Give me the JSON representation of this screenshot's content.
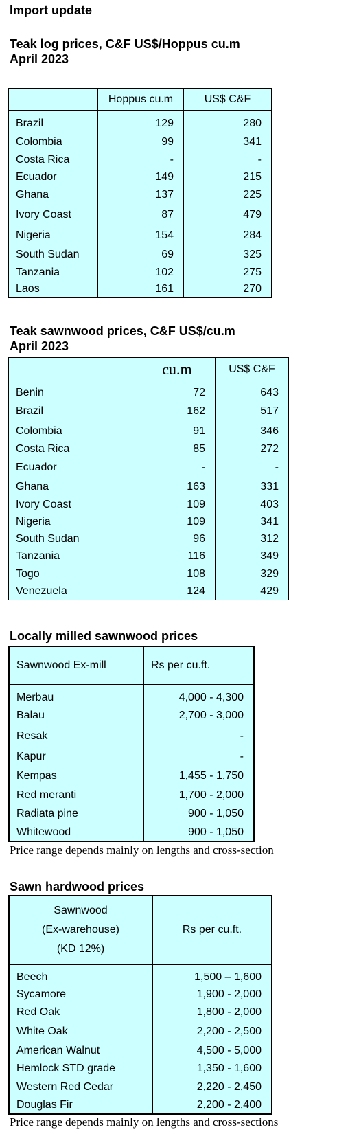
{
  "title": "Import update",
  "teak_log": {
    "heading1": "Teak log prices, C&F US$/Hoppus cu.m",
    "heading2": "April 2023",
    "col1": "Hoppus cu.m",
    "col2": "US$ C&F",
    "rows": [
      {
        "country": "Brazil",
        "a": "129",
        "b": "280"
      },
      {
        "country": "Colombia",
        "a": "99",
        "b": "341"
      },
      {
        "country": "Costa Rica",
        "a": "-",
        "b": "-"
      },
      {
        "country": "Ecuador",
        "a": "149",
        "b": "215"
      },
      {
        "country": "Ghana",
        "a": "137",
        "b": "225"
      },
      {
        "country": "Ivory Coast",
        "a": "87",
        "b": "479"
      },
      {
        "country": "Nigeria",
        "a": "154",
        "b": "284"
      },
      {
        "country": "South Sudan",
        "a": "69",
        "b": "325"
      },
      {
        "country": "Tanzania",
        "a": "102",
        "b": "275"
      },
      {
        "country": "Laos",
        "a": "161",
        "b": "270"
      }
    ]
  },
  "teak_sawn": {
    "heading1": "Teak sawnwood prices, C&F US$/cu.m",
    "heading2": "April 2023",
    "col1": "cu.m",
    "col2": "US$ C&F",
    "rows": [
      {
        "country": "Benin",
        "a": "72",
        "b": "643"
      },
      {
        "country": "Brazil",
        "a": "162",
        "b": "517"
      },
      {
        "country": "Colombia",
        "a": "91",
        "b": "346"
      },
      {
        "country": "Costa Rica",
        "a": "85",
        "b": "272"
      },
      {
        "country": "Ecuador",
        "a": "-",
        "b": "-"
      },
      {
        "country": "Ghana",
        "a": "163",
        "b": "331"
      },
      {
        "country": "Ivory Coast",
        "a": "109",
        "b": "403"
      },
      {
        "country": "Nigeria",
        "a": "109",
        "b": "341"
      },
      {
        "country": "South Sudan",
        "a": "96",
        "b": "312"
      },
      {
        "country": "Tanzania",
        "a": "116",
        "b": "349"
      },
      {
        "country": "Togo",
        "a": "108",
        "b": "329"
      },
      {
        "country": "Venezuela",
        "a": "124",
        "b": "429"
      }
    ]
  },
  "local_milled": {
    "heading": "Locally milled sawnwood prices",
    "col1": "Sawnwood Ex-mill",
    "col2": "Rs per cu.ft.",
    "rows": [
      {
        "species": "Merbau",
        "price": "4,000 - 4,300"
      },
      {
        "species": "Balau",
        "price": "2,700 - 3,000"
      },
      {
        "species": "Resak",
        "price": "-"
      },
      {
        "species": "Kapur",
        "price": "-"
      },
      {
        "species": "Kempas",
        "price": "1,455  - 1,750"
      },
      {
        "species": "Red meranti",
        "price": "1,700 -  2,000"
      },
      {
        "species": "Radiata pine",
        "price": "900 - 1,050"
      },
      {
        "species": "Whitewood",
        "price": "900 - 1,050"
      }
    ],
    "note": "Price range depends mainly on lengths and cross-section"
  },
  "sawn_hardwood": {
    "heading": "Sawn hardwood prices",
    "col1_line1": "Sawnwood",
    "col1_line2": "(Ex-warehouse)",
    "col1_line3": "(KD 12%)",
    "col2": "Rs per cu.ft.",
    "rows": [
      {
        "species": "Beech",
        "price": "1,500 – 1,600"
      },
      {
        "species": "Sycamore",
        "price": "1,900 - 2,000"
      },
      {
        "species": "Red Oak",
        "price": "1,800 - 2,000"
      },
      {
        "species": "White Oak",
        "price": "2,200 - 2,500"
      },
      {
        "species": "American Walnut",
        "price": "4,500 - 5,000"
      },
      {
        "species": "Hemlock STD grade",
        "price": "1,350 - 1,600"
      },
      {
        "species": "Western Red Cedar",
        "price": "2,220 - 2,450"
      },
      {
        "species": "Douglas Fir",
        "price": "2,200 - 2,400"
      }
    ],
    "note": "Price range depends mainly on lengths and cross-sections"
  }
}
